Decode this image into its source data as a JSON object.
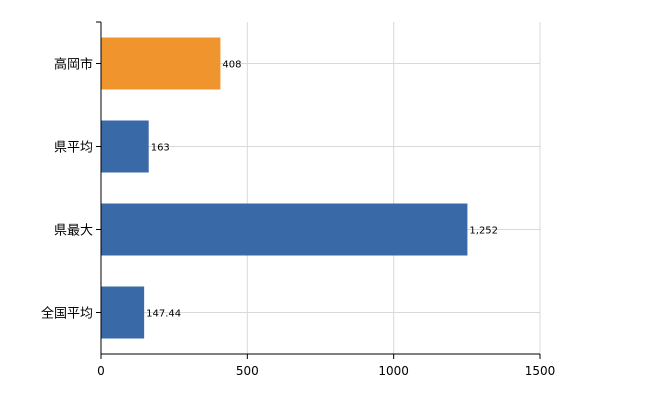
{
  "chart_data": {
    "type": "bar",
    "orientation": "horizontal",
    "categories": [
      "高岡市",
      "県平均",
      "県最大",
      "全国平均"
    ],
    "values": [
      408,
      163,
      1252,
      147.44
    ],
    "value_labels": [
      "408",
      "163",
      "1,252",
      "147.44"
    ],
    "title": "",
    "xlabel": "",
    "ylabel": "",
    "xlim": [
      0,
      1500
    ],
    "x_ticks": [
      0,
      500,
      1000,
      1500
    ],
    "x_tick_labels": [
      "0",
      "500",
      "1000",
      "1500"
    ],
    "grid": true,
    "legend": "none"
  },
  "colors": {
    "highlight_bar": "#f0942d",
    "default_bar": "#3a69a8",
    "gridline": "#d9d9d9",
    "axis": "#000000"
  },
  "highlight_index": 0
}
